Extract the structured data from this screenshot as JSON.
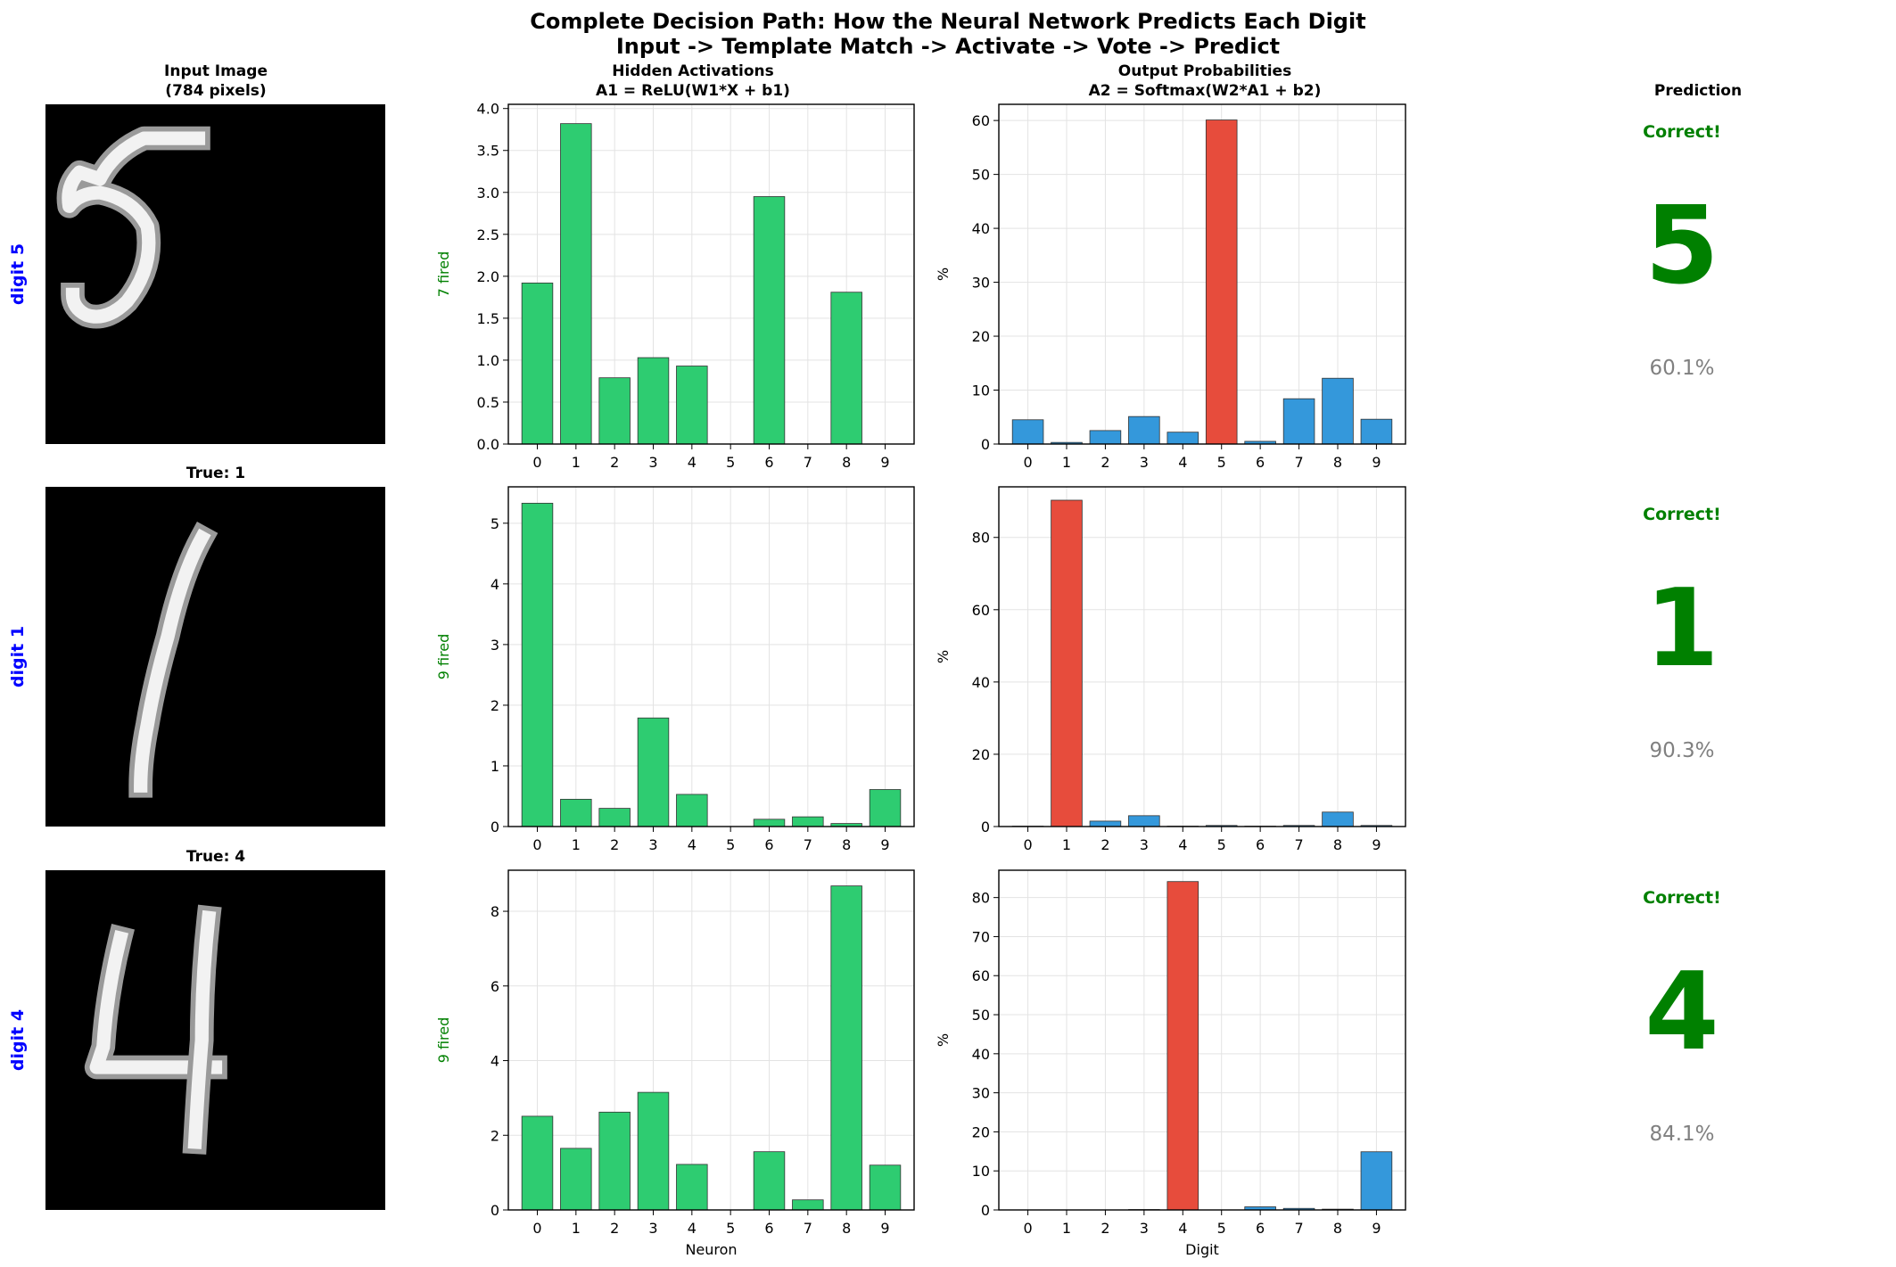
{
  "figure": {
    "title_line1": "Complete Decision Path: How the Neural Network Predicts Each Digit",
    "title_line2": "Input -> Template Match -> Activate -> Vote -> Predict"
  },
  "columns": {
    "input": {
      "title_line1": "Input Image",
      "title_line2": "(784 pixels)"
    },
    "hidden": {
      "title_line1": "Hidden Activations",
      "title_line2": "A1 = ReLU(W1*X + b1)"
    },
    "output": {
      "title_line1": "Output Probabilities",
      "title_line2": "A2 = Softmax(W2*A1 + b2)"
    },
    "prediction": {
      "title": "Prediction"
    }
  },
  "colors": {
    "hidden_bar": "#2ecc71",
    "output_bar": "#3498db",
    "output_bar_predicted": "#e74c3c",
    "correct": "#008000",
    "row_label": "#0000ff",
    "confidence": "#808080"
  },
  "icons": {
    "digit_image": "handwritten-digit-icon"
  },
  "chart_data": [
    {
      "type": "bar",
      "row": 0,
      "input_title": "",
      "row_label": "digit 5",
      "hidden": {
        "categories": [
          "0",
          "1",
          "2",
          "3",
          "4",
          "5",
          "6",
          "7",
          "8",
          "9"
        ],
        "values": [
          1.92,
          3.82,
          0.79,
          1.03,
          0.93,
          0,
          2.95,
          0,
          1.81,
          0
        ],
        "ylabel": "7 fired",
        "ylim": [
          0,
          4.05
        ],
        "yticks": [
          "0.0",
          "0.5",
          "1.0",
          "1.5",
          "2.0",
          "2.5",
          "3.0",
          "3.5",
          "4.0"
        ],
        "xlabel": ""
      },
      "output": {
        "categories": [
          "0",
          "1",
          "2",
          "3",
          "4",
          "5",
          "6",
          "7",
          "8",
          "9"
        ],
        "values": [
          4.5,
          0.3,
          2.5,
          5.1,
          2.2,
          60.1,
          0.5,
          8.4,
          12.2,
          4.6
        ],
        "ylabel": "%",
        "ylim": [
          0,
          63
        ],
        "yticks": [
          "0",
          "10",
          "20",
          "30",
          "40",
          "50",
          "60"
        ],
        "xlabel": "",
        "predicted_index": 5
      },
      "prediction": {
        "status": "Correct!",
        "digit": "5",
        "confidence": "60.1%"
      }
    },
    {
      "type": "bar",
      "row": 1,
      "input_title": "True: 1",
      "row_label": "digit 1",
      "hidden": {
        "categories": [
          "0",
          "1",
          "2",
          "3",
          "4",
          "5",
          "6",
          "7",
          "8",
          "9"
        ],
        "values": [
          5.33,
          0.45,
          0.3,
          1.79,
          0.53,
          0,
          0.12,
          0.16,
          0.05,
          0.61
        ],
        "ylabel": "9 fired",
        "ylim": [
          0,
          5.6
        ],
        "yticks": [
          "0",
          "1",
          "2",
          "3",
          "4",
          "5"
        ],
        "xlabel": ""
      },
      "output": {
        "categories": [
          "0",
          "1",
          "2",
          "3",
          "4",
          "5",
          "6",
          "7",
          "8",
          "9"
        ],
        "values": [
          0.1,
          90.3,
          1.5,
          3.0,
          0.1,
          0.3,
          0.1,
          0.3,
          4.0,
          0.3
        ],
        "ylabel": "%",
        "ylim": [
          0,
          94
        ],
        "yticks": [
          "0",
          "20",
          "40",
          "60",
          "80"
        ],
        "xlabel": "",
        "predicted_index": 1
      },
      "prediction": {
        "status": "Correct!",
        "digit": "1",
        "confidence": "90.3%"
      }
    },
    {
      "type": "bar",
      "row": 2,
      "input_title": "True: 4",
      "row_label": "digit 4",
      "hidden": {
        "categories": [
          "0",
          "1",
          "2",
          "3",
          "4",
          "5",
          "6",
          "7",
          "8",
          "9"
        ],
        "values": [
          2.51,
          1.65,
          2.62,
          3.15,
          1.22,
          0,
          1.56,
          0.27,
          8.68,
          1.2
        ],
        "ylabel": "9 fired",
        "ylim": [
          0,
          9.1
        ],
        "yticks": [
          "0",
          "2",
          "4",
          "6",
          "8"
        ],
        "xlabel": "Neuron"
      },
      "output": {
        "categories": [
          "0",
          "1",
          "2",
          "3",
          "4",
          "5",
          "6",
          "7",
          "8",
          "9"
        ],
        "values": [
          0.05,
          0.05,
          0.05,
          0.1,
          84.1,
          0.05,
          0.8,
          0.4,
          0.2,
          14.9
        ],
        "ylabel": "%",
        "ylim": [
          0,
          87
        ],
        "yticks": [
          "0",
          "10",
          "20",
          "30",
          "40",
          "50",
          "60",
          "70",
          "80"
        ],
        "xlabel": "Digit",
        "predicted_index": 4
      },
      "prediction": {
        "status": "Correct!",
        "digit": "4",
        "confidence": "84.1%"
      }
    }
  ]
}
